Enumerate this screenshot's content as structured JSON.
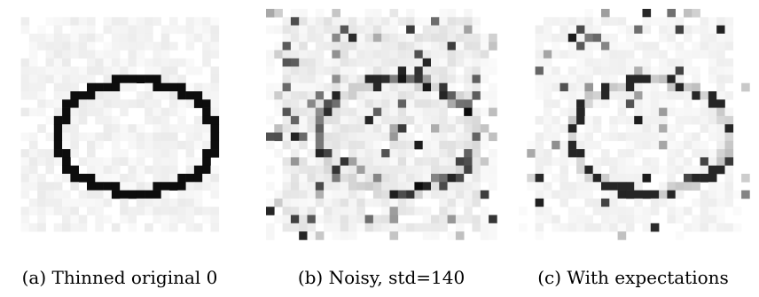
{
  "figure": {
    "panels": [
      {
        "caption": "(a)  Thinned original 0"
      },
      {
        "caption": "(b)  Noisy, std=140"
      },
      {
        "caption": "(c)  With expectations"
      }
    ]
  }
}
